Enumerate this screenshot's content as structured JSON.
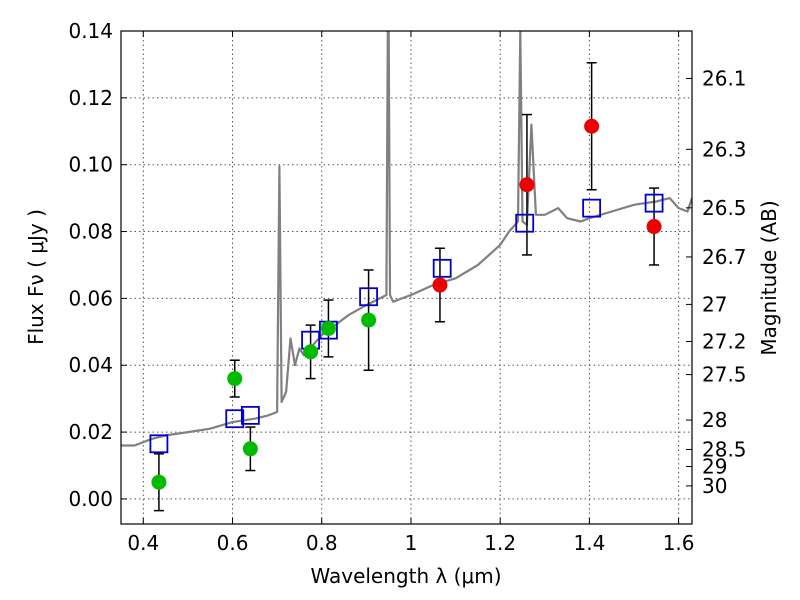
{
  "chart_data": {
    "type": "scatter",
    "title": "",
    "xlabel": "Wavelength  λ (μm)",
    "ylabel": "Flux  Fν  ( μJy )",
    "ylabel_right": "Magnitude (AB)",
    "xlim": [
      0.35,
      1.63
    ],
    "ylim": [
      -0.0075,
      0.14
    ],
    "x_ticks": [
      0.4,
      0.6,
      0.8,
      1.0,
      1.2,
      1.4,
      1.6
    ],
    "x_tick_labels": [
      "0.4",
      "0.6",
      "0.8",
      "1",
      "1.2",
      "1.4",
      "1.6"
    ],
    "y_ticks": [
      0.0,
      0.02,
      0.04,
      0.06,
      0.08,
      0.1,
      0.12,
      0.14
    ],
    "y_tick_labels": [
      "0.00",
      "0.02",
      "0.04",
      "0.06",
      "0.08",
      "0.10",
      "0.12",
      "0.14"
    ],
    "right_ticks": [
      {
        "label": "26.1",
        "flux": 0.1258
      },
      {
        "label": "26.3",
        "flux": 0.1046
      },
      {
        "label": "26.5",
        "flux": 0.0871
      },
      {
        "label": "26.7",
        "flux": 0.0724
      },
      {
        "label": "27",
        "flux": 0.0582
      },
      {
        "label": "27.2",
        "flux": 0.0471
      },
      {
        "label": "27.5",
        "flux": 0.0372
      },
      {
        "label": "28",
        "flux": 0.0236
      },
      {
        "label": "28.5",
        "flux": 0.0148
      },
      {
        "label": "29",
        "flux": 0.0097
      },
      {
        "label": "30",
        "flux": 0.0039
      }
    ],
    "grid": true,
    "legend": "none",
    "series": [
      {
        "kind": "line",
        "color": "#808080",
        "x": [
          0.35,
          0.38,
          0.42,
          0.45,
          0.5,
          0.55,
          0.6,
          0.65,
          0.68,
          0.7,
          0.705,
          0.71,
          0.72,
          0.73,
          0.74,
          0.75,
          0.76,
          0.78,
          0.8,
          0.83,
          0.86,
          0.9,
          0.93,
          0.945,
          0.948,
          0.95,
          0.953,
          0.96,
          1.0,
          1.05,
          1.1,
          1.15,
          1.2,
          1.22,
          1.24,
          1.245,
          1.25,
          1.26,
          1.27,
          1.28,
          1.3,
          1.33,
          1.35,
          1.38,
          1.4,
          1.45,
          1.5,
          1.55,
          1.58,
          1.6,
          1.62,
          1.63
        ],
        "y": [
          0.016,
          0.016,
          0.018,
          0.019,
          0.02,
          0.021,
          0.023,
          0.024,
          0.025,
          0.026,
          0.0995,
          0.029,
          0.032,
          0.048,
          0.04,
          0.045,
          0.043,
          0.046,
          0.049,
          0.052,
          0.055,
          0.058,
          0.06,
          0.061,
          0.14,
          0.14,
          0.061,
          0.059,
          0.061,
          0.064,
          0.066,
          0.07,
          0.076,
          0.08,
          0.083,
          0.14,
          0.083,
          0.082,
          0.112,
          0.085,
          0.085,
          0.087,
          0.084,
          0.083,
          0.084,
          0.086,
          0.088,
          0.089,
          0.09,
          0.087,
          0.086,
          0.09
        ]
      },
      {
        "kind": "markers",
        "marker": "square",
        "color": "#0000cc",
        "x": [
          0.435,
          0.605,
          0.64,
          0.775,
          0.815,
          0.905,
          1.07,
          1.255,
          1.405,
          1.545
        ],
        "y": [
          0.0165,
          0.024,
          0.025,
          0.0475,
          0.0505,
          0.0605,
          0.069,
          0.0825,
          0.087,
          0.0885
        ]
      },
      {
        "kind": "markers",
        "marker": "circle",
        "color": "#00bb00",
        "x": [
          0.435,
          0.605,
          0.64,
          0.775,
          0.815,
          0.905
        ],
        "y": [
          0.005,
          0.036,
          0.015,
          0.044,
          0.051,
          0.0535
        ],
        "yerr": [
          0.0085,
          0.0055,
          0.0065,
          0.008,
          0.0085,
          0.015
        ]
      },
      {
        "kind": "markers",
        "marker": "circle",
        "color": "#ee0000",
        "x": [
          1.065,
          1.26,
          1.405,
          1.545
        ],
        "y": [
          0.064,
          0.094,
          0.1115,
          0.0815
        ],
        "yerr": [
          0.011,
          0.021,
          0.019,
          0.0115
        ]
      }
    ]
  }
}
